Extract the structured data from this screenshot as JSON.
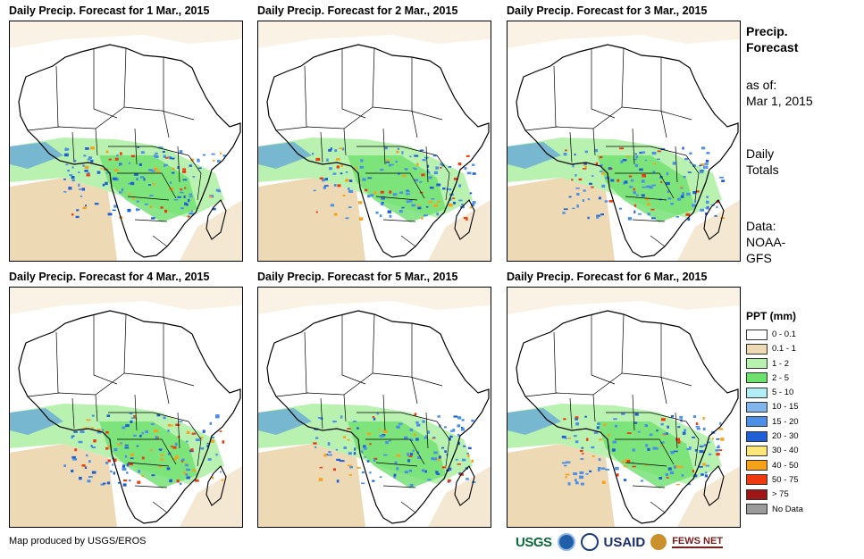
{
  "panels": [
    {
      "title": "Daily Precip. Forecast for 1 Mar., 2015"
    },
    {
      "title": "Daily Precip. Forecast for 2 Mar., 2015"
    },
    {
      "title": "Daily Precip. Forecast for 3 Mar., 2015"
    },
    {
      "title": "Daily Precip. Forecast for 4 Mar., 2015"
    },
    {
      "title": "Daily Precip. Forecast for 5 Mar., 2015"
    },
    {
      "title": "Daily Precip. Forecast for 6 Mar., 2015"
    }
  ],
  "side": {
    "title_line1": "Precip.",
    "title_line2": "Forecast",
    "asof_label": "as of:",
    "asof_date": "Mar 1, 2015",
    "totals_line1": "Daily",
    "totals_line2": "Totals",
    "data_label": "Data:",
    "data_line1": "NOAA-",
    "data_line2": "GFS"
  },
  "legend": {
    "title": "PPT (mm)",
    "items": [
      {
        "label": "0 - 0.1",
        "color": "#ffffff"
      },
      {
        "label": "0.1 - 1",
        "color": "#eed9b5"
      },
      {
        "label": "1 - 2",
        "color": "#b9f2b0"
      },
      {
        "label": "2 - 5",
        "color": "#6ee06e"
      },
      {
        "label": "5 - 10",
        "color": "#b0eef5"
      },
      {
        "label": "10 - 15",
        "color": "#7fb6ee"
      },
      {
        "label": "15 - 20",
        "color": "#4b8fe6"
      },
      {
        "label": "20 - 30",
        "color": "#1f5fd6"
      },
      {
        "label": "30 - 40",
        "color": "#fde77a"
      },
      {
        "label": "40 - 50",
        "color": "#f5a21a"
      },
      {
        "label": "50 - 75",
        "color": "#ee3a0e"
      },
      {
        "label": "> 75",
        "color": "#a01616"
      },
      {
        "label": "No Data",
        "color": "#9a9a9a"
      }
    ]
  },
  "credit": "Map produced by USGS/EROS",
  "logos": {
    "usgs": "USGS",
    "usaid": "USAID",
    "fews": "FEWS NET"
  },
  "colors": {
    "tan": "#eed9b5",
    "green": "#6ee06e",
    "lightgreen": "#b9f2b0",
    "blue": "#4b8fe6",
    "darkblue": "#1f5fd6",
    "red": "#ee3a0e",
    "orange": "#f5a21a"
  }
}
